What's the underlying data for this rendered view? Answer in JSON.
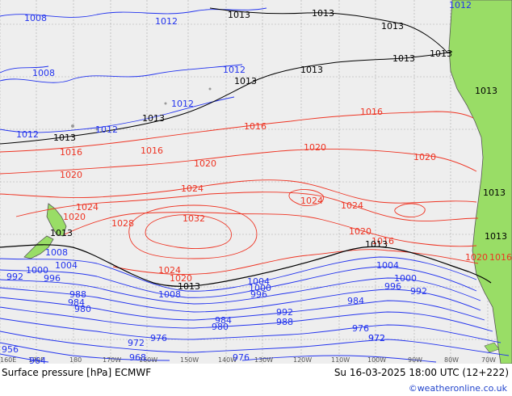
{
  "map": {
    "title": "Surface pressure [hPa] ECMWF",
    "valid_time": "Su 16-03-2025 18:00 UTC (12+222)",
    "credit": "©weatheronline.co.uk",
    "colors": {
      "ocean": "#eeeeee",
      "land": "#99dd66",
      "low_isobar": "#2233ee",
      "mid_isobar": "#000000",
      "high_isobar": "#ee3322",
      "grid": "#aaaaaa",
      "coast": "#555555"
    },
    "lon_labels": [
      "160E",
      "170E",
      "180",
      "170W",
      "160W",
      "150W",
      "140W",
      "130W",
      "120W",
      "110W",
      "100W",
      "90W",
      "80W",
      "70W"
    ],
    "isobar_labels": [
      {
        "value": "1008",
        "color": "low"
      },
      {
        "value": "1012",
        "color": "low"
      },
      {
        "value": "1013",
        "color": "mid"
      },
      {
        "value": "1013",
        "color": "mid"
      },
      {
        "value": "1013",
        "color": "mid"
      },
      {
        "value": "1012",
        "color": "low"
      },
      {
        "value": "1008",
        "color": "low"
      },
      {
        "value": "1013",
        "color": "mid"
      },
      {
        "value": "1012",
        "color": "low"
      },
      {
        "value": "1013",
        "color": "mid"
      },
      {
        "value": "1013",
        "color": "mid"
      },
      {
        "value": "1012",
        "color": "low"
      },
      {
        "value": "1012",
        "color": "low"
      },
      {
        "value": "1013",
        "color": "mid"
      },
      {
        "value": "1016",
        "color": "high"
      },
      {
        "value": "1016",
        "color": "high"
      },
      {
        "value": "1016",
        "color": "high"
      },
      {
        "value": "1016",
        "color": "high"
      },
      {
        "value": "1020",
        "color": "high"
      },
      {
        "value": "1020",
        "color": "high"
      },
      {
        "value": "1020",
        "color": "high"
      },
      {
        "value": "1020",
        "color": "high"
      },
      {
        "value": "1024",
        "color": "high"
      },
      {
        "value": "1024",
        "color": "high"
      },
      {
        "value": "1024",
        "color": "high"
      },
      {
        "value": "1024",
        "color": "high"
      },
      {
        "value": "1028",
        "color": "high"
      },
      {
        "value": "1032",
        "color": "high"
      },
      {
        "value": "1020",
        "color": "high"
      },
      {
        "value": "1020",
        "color": "high"
      },
      {
        "value": "1024",
        "color": "high"
      },
      {
        "value": "1020",
        "color": "high"
      },
      {
        "value": "1016",
        "color": "high"
      },
      {
        "value": "1013",
        "color": "mid"
      },
      {
        "value": "1013",
        "color": "mid"
      },
      {
        "value": "1013",
        "color": "mid"
      },
      {
        "value": "1008",
        "color": "low"
      },
      {
        "value": "1004",
        "color": "low"
      },
      {
        "value": "1000",
        "color": "low"
      },
      {
        "value": "996",
        "color": "low"
      },
      {
        "value": "992",
        "color": "low"
      },
      {
        "value": "988",
        "color": "low"
      },
      {
        "value": "984",
        "color": "low"
      },
      {
        "value": "980",
        "color": "low"
      },
      {
        "value": "976",
        "color": "low"
      },
      {
        "value": "972",
        "color": "low"
      },
      {
        "value": "968",
        "color": "low"
      },
      {
        "value": "964",
        "color": "low"
      },
      {
        "value": "956",
        "color": "low"
      },
      {
        "value": "1008",
        "color": "low"
      },
      {
        "value": "1004",
        "color": "low"
      },
      {
        "value": "1000",
        "color": "low"
      },
      {
        "value": "996",
        "color": "low"
      },
      {
        "value": "992",
        "color": "low"
      },
      {
        "value": "988",
        "color": "low"
      },
      {
        "value": "984",
        "color": "low"
      },
      {
        "value": "980",
        "color": "low"
      },
      {
        "value": "976",
        "color": "low"
      },
      {
        "value": "972",
        "color": "low"
      },
      {
        "value": "1004",
        "color": "low"
      },
      {
        "value": "1000",
        "color": "low"
      },
      {
        "value": "996",
        "color": "low"
      },
      {
        "value": "992",
        "color": "low"
      },
      {
        "value": "984",
        "color": "low"
      },
      {
        "value": "976",
        "color": "low"
      },
      {
        "value": "972",
        "color": "low"
      },
      {
        "value": "1013",
        "color": "mid"
      },
      {
        "value": "1013",
        "color": "mid"
      },
      {
        "value": "1013",
        "color": "mid"
      },
      {
        "value": "1013",
        "color": "mid"
      },
      {
        "value": "1012",
        "color": "low"
      },
      {
        "value": "1016",
        "color": "high"
      },
      {
        "value": "1020",
        "color": "high"
      },
      {
        "value": "1013",
        "color": "mid"
      }
    ]
  }
}
